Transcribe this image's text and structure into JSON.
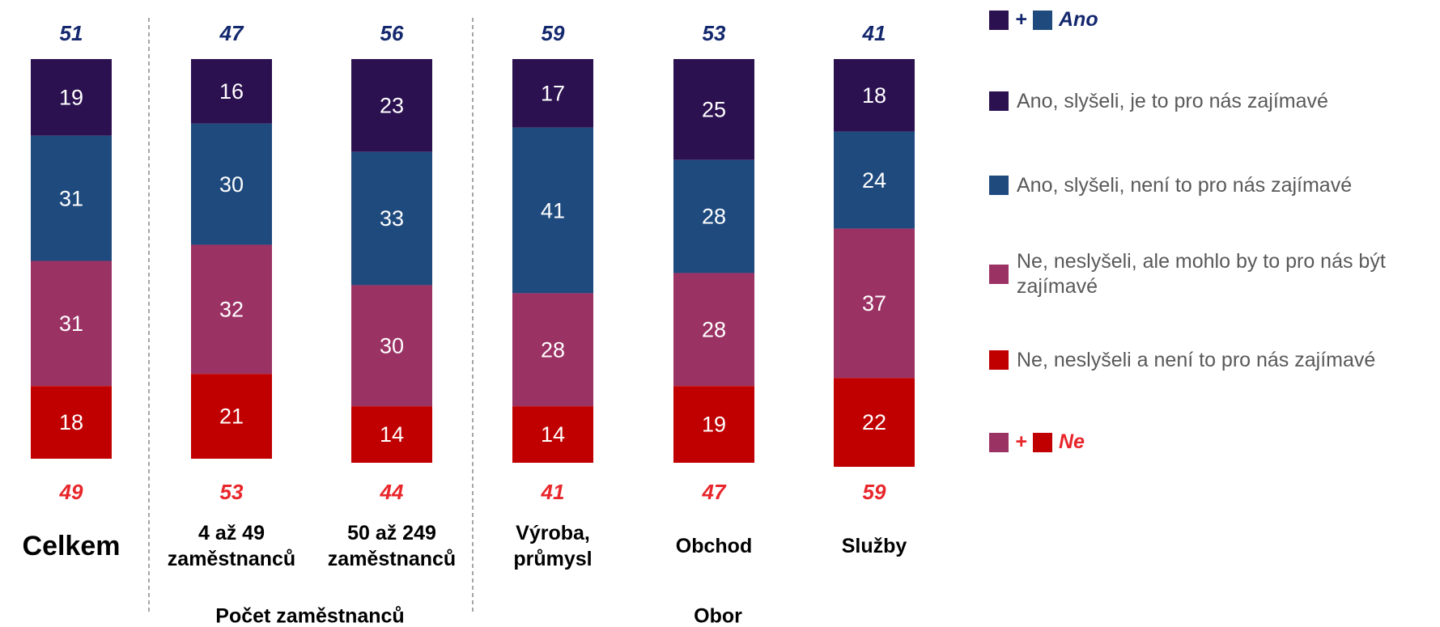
{
  "chart_data": {
    "type": "stacked_bar",
    "categories": [
      "Celkem",
      "4 až 49 zaměstnanců",
      "50 až 249 zaměstnanců",
      "Výroba, průmysl",
      "Obchod",
      "Služby"
    ],
    "series": [
      {
        "name": "Ano, slyšeli, je to pro nás zajímavé",
        "color": "#2b1150",
        "values": [
          19,
          16,
          23,
          17,
          25,
          18
        ]
      },
      {
        "name": "Ano, slyšeli, není to pro nás zajímavé",
        "color": "#1f4a7e",
        "values": [
          31,
          30,
          33,
          41,
          28,
          24
        ]
      },
      {
        "name": "Ne, neslyšeli, ale mohlo by to pro nás být zajímavé",
        "color": "#9b3264",
        "values": [
          31,
          32,
          30,
          28,
          28,
          37
        ]
      },
      {
        "name": "Ne, neslyšeli a není to pro nás zajímavé",
        "color": "#c00000",
        "values": [
          18,
          21,
          14,
          14,
          19,
          22
        ]
      }
    ],
    "totals": [
      {
        "label": "Ano",
        "plus": "+",
        "color": "#14286e",
        "colors": [
          "#2b1150",
          "#1f4a7e"
        ],
        "values": [
          51,
          47,
          56,
          59,
          53,
          41
        ]
      },
      {
        "label": "Ne",
        "plus": "+",
        "color": "#e8262b",
        "colors": [
          "#9b3264",
          "#c00000"
        ],
        "values": [
          49,
          53,
          44,
          41,
          47,
          59
        ]
      }
    ],
    "groups": [
      "Počet zaměstnanců",
      "Obor"
    ],
    "ylim": [
      0,
      100
    ]
  }
}
